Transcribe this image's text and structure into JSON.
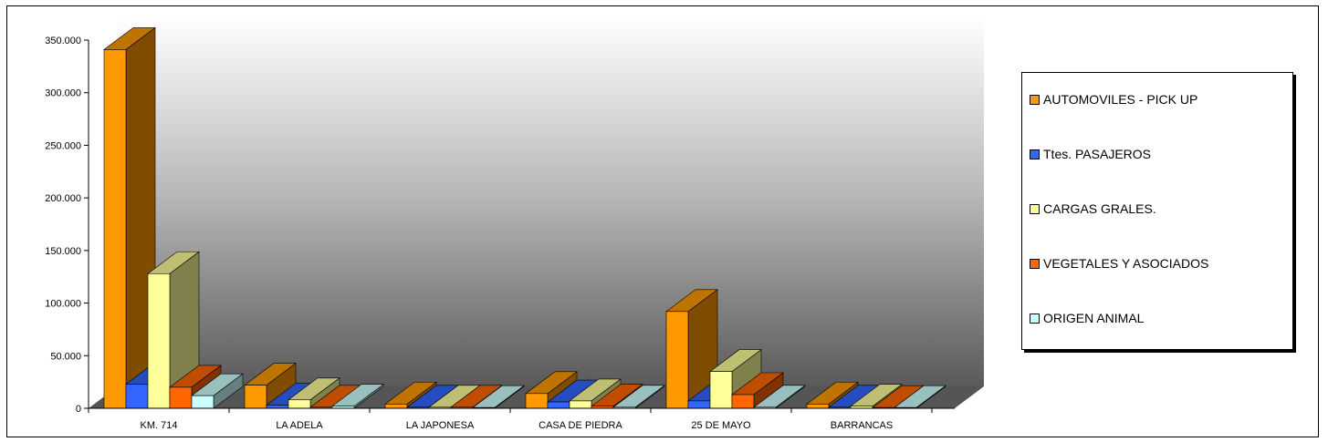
{
  "chart_data": {
    "type": "bar",
    "categories": [
      "KM. 714",
      "LA ADELA",
      "LA JAPONESA",
      "CASA DE PIEDRA",
      "25 DE MAYO",
      "BARRANCAS"
    ],
    "series": [
      {
        "name": "AUTOMOVILES - PICK UP",
        "values": [
          341000,
          22000,
          4000,
          14000,
          92000,
          4000
        ],
        "color": "#FF9900"
      },
      {
        "name": "Ttes. PASAJEROS",
        "values": [
          23000,
          3000,
          1000,
          6000,
          7000,
          1000
        ],
        "color": "#3366FF"
      },
      {
        "name": "CARGAS GRALES.",
        "values": [
          128000,
          8000,
          1000,
          7000,
          35000,
          2000
        ],
        "color": "#FFFF99"
      },
      {
        "name": "VEGETALES Y ASOCIADOS",
        "values": [
          20000,
          1000,
          1000,
          2000,
          13000,
          500
        ],
        "color": "#FF6600"
      },
      {
        "name": "ORIGEN ANIMAL",
        "values": [
          12000,
          2000,
          500,
          1000,
          1000,
          0
        ],
        "color": "#CCFFFF"
      }
    ],
    "y_ticks": [
      "0",
      "50.000",
      "100.000",
      "150.000",
      "200.000",
      "250.000",
      "300.000",
      "350.000"
    ],
    "ylim": [
      0,
      350000
    ],
    "grid": false,
    "legend_position": "right",
    "title": "",
    "xlabel": "",
    "ylabel": ""
  }
}
